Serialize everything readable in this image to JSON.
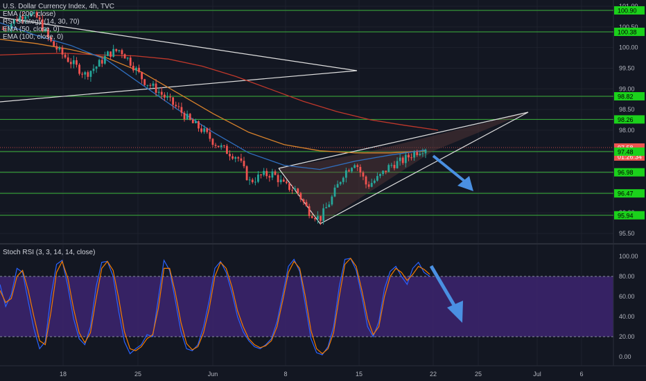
{
  "chart_data": [
    {
      "type": "candlestick",
      "title": "U.S. Dollar Currency Index, 4h, TVC",
      "indicators": [
        "EMA (200, close)",
        "RSI Strategy (14, 30, 70)",
        "EMA (50, close, 0)",
        "EMA (100, close, 0)"
      ],
      "x_ticks": [
        "18",
        "25",
        "Jun",
        "8",
        "15",
        "22",
        "25",
        "Jul",
        "6"
      ],
      "y_ticks": [
        95.5,
        96.0,
        96.5,
        97.0,
        97.5,
        98.0,
        98.5,
        99.0,
        99.5,
        100.0,
        100.5,
        101.0
      ],
      "ylim": [
        95.35,
        101.05
      ],
      "horizontal_levels": [
        100.9,
        100.38,
        98.82,
        98.26,
        97.48,
        96.98,
        96.47,
        95.94
      ],
      "price_labels": [
        {
          "text": "100.90",
          "kind": "level"
        },
        {
          "text": "100.38",
          "kind": "level"
        },
        {
          "text": "98.82",
          "kind": "level"
        },
        {
          "text": "98.26",
          "kind": "level"
        },
        {
          "text": "97.58",
          "kind": "last"
        },
        {
          "text": "01:26:34",
          "kind": "countdown"
        },
        {
          "text": "97.48",
          "kind": "level"
        },
        {
          "text": "96.98",
          "kind": "level"
        },
        {
          "text": "96.47",
          "kind": "level"
        },
        {
          "text": "95.94",
          "kind": "level"
        }
      ],
      "close_path": [
        100.45,
        100.65,
        100.85,
        100.7,
        100.15,
        99.85,
        99.6,
        99.35,
        99.55,
        99.85,
        99.95,
        99.6,
        99.2,
        99.0,
        98.75,
        98.5,
        98.2,
        98.0,
        97.7,
        97.5,
        97.35,
        96.75,
        96.9,
        96.95,
        96.65,
        96.55,
        96.05,
        95.85,
        96.35,
        96.95,
        97.25,
        96.65,
        96.85,
        97.15,
        97.25,
        97.45,
        97.58
      ],
      "ema_200": [
        99.82,
        99.85,
        99.86,
        99.82,
        99.8,
        99.72,
        99.55,
        99.3,
        99.0,
        98.7,
        98.45,
        98.25,
        98.12,
        98.0
      ],
      "ema_100": [
        100.2,
        100.1,
        99.95,
        99.75,
        99.4,
        98.9,
        98.4,
        97.95,
        97.65,
        97.5,
        97.45,
        97.45,
        97.5
      ],
      "ema_50": [
        100.6,
        100.3,
        100.05,
        99.7,
        99.1,
        98.5,
        97.95,
        97.45,
        97.15,
        97.05,
        97.25,
        97.4,
        97.52
      ]
    },
    {
      "type": "line",
      "title": "Stoch RSI (3, 3, 14, 14, close)",
      "y_ticks": [
        0.0,
        20.0,
        40.0,
        60.0,
        80.0,
        100.0
      ],
      "ylim": [
        -8,
        108
      ],
      "band": [
        20,
        80
      ],
      "series": [
        {
          "values": [
            72,
            50,
            62,
            88,
            84,
            55,
            28,
            8,
            15,
            60,
            92,
            96,
            70,
            38,
            18,
            12,
            30,
            70,
            94,
            95,
            80,
            45,
            15,
            3,
            8,
            12,
            22,
            20,
            58,
            96,
            86,
            56,
            25,
            8,
            6,
            12,
            30,
            56,
            88,
            95,
            84,
            64,
            40,
            25,
            16,
            10,
            8,
            12,
            18,
            35,
            62,
            90,
            97,
            85,
            52,
            18,
            4,
            2,
            10,
            30,
            70,
            97,
            98,
            86,
            60,
            30,
            20,
            35,
            68,
            85,
            90,
            80,
            72,
            88,
            94,
            84,
            80
          ]
        },
        {
          "values": [
            66,
            54,
            58,
            80,
            86,
            66,
            40,
            16,
            12,
            44,
            84,
            95,
            78,
            48,
            24,
            14,
            24,
            58,
            88,
            95,
            86,
            58,
            25,
            8,
            6,
            10,
            18,
            22,
            48,
            88,
            88,
            64,
            34,
            13,
            7,
            10,
            24,
            48,
            80,
            94,
            88,
            70,
            46,
            30,
            18,
            12,
            9,
            11,
            16,
            30,
            56,
            84,
            95,
            88,
            60,
            26,
            8,
            3,
            8,
            24,
            60,
            92,
            98,
            90,
            66,
            38,
            22,
            30,
            60,
            80,
            88,
            84,
            76,
            82,
            90,
            87,
            82
          ]
        }
      ]
    }
  ],
  "legend": {
    "main": [
      "U.S. Dollar Currency Index, 4h, TVC",
      "EMA (200, close)",
      "RSI Strategy (14, 30, 70)",
      "EMA (50, close, 0)",
      "EMA (100, close, 0)"
    ],
    "rsi": "Stoch RSI (3, 3, 14, 14, close)"
  },
  "colors": {
    "background": "#131722",
    "up": "#26a69a",
    "down": "#ef5350",
    "level_line": "#3cb43c",
    "level_tag": "#1bd11b",
    "ema_200": "#c0382b",
    "ema_100": "#d9822b",
    "ema_50": "#2f6fbf",
    "rsi_k": "#2962ff",
    "rsi_d": "#f57c00",
    "band": "#3d2470",
    "arrow": "#4a90e2",
    "wedge_fill": "#5a3a3a"
  }
}
